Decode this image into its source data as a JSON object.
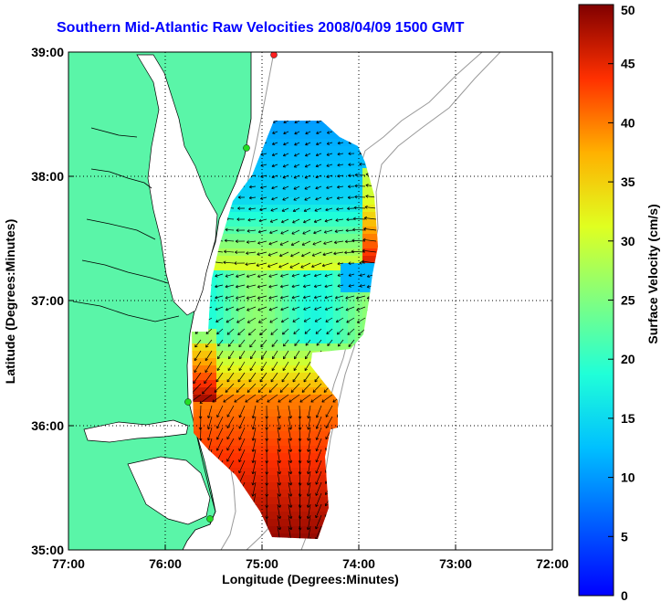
{
  "title": "Southern Mid-Atlantic Raw Velocities 2008/04/09 1500 GMT",
  "x_axis": {
    "label": "Longitude (Degrees:Minutes)",
    "ticks": [
      "77:00",
      "76:00",
      "75:00",
      "74:00",
      "73:00",
      "72:00"
    ]
  },
  "y_axis": {
    "label": "Latitude (Degrees:Minutes)",
    "ticks": [
      "39:00",
      "38:00",
      "37:00",
      "36:00",
      "35:00"
    ]
  },
  "colorbar": {
    "label": "Surface Velocity (cm/s)",
    "ticks": [
      "50",
      "45",
      "40",
      "35",
      "30",
      "25",
      "20",
      "15",
      "10",
      "5",
      "0"
    ],
    "range": [
      0,
      50
    ],
    "colormap": "jet"
  },
  "chart_data": {
    "type": "heatmap",
    "x_range_deg_west": [
      77,
      72
    ],
    "y_range_deg_north": [
      35,
      39
    ],
    "grid": true,
    "colors": {
      "land": "#5af5a8",
      "coastline": "#000000",
      "bathymetry": "#9a9a9a"
    }
  }
}
